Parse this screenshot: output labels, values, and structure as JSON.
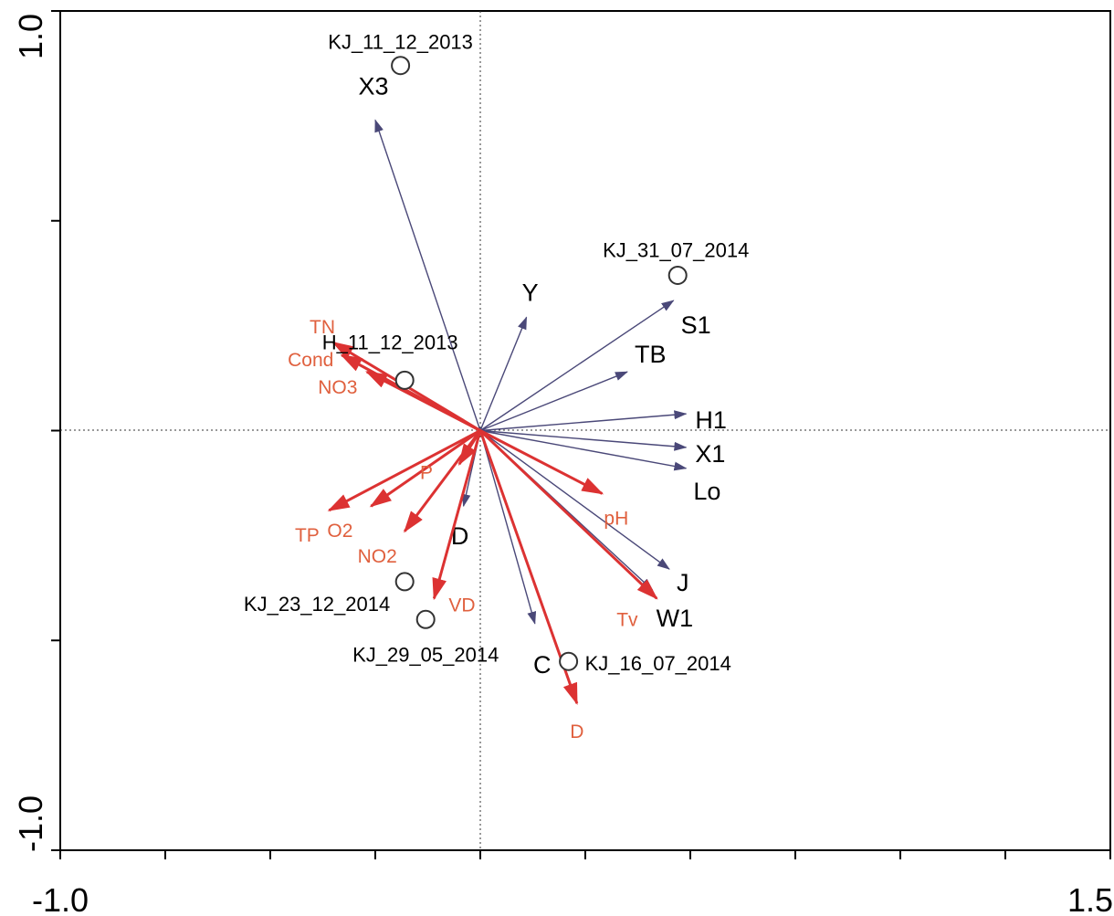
{
  "chart_data": {
    "type": "scatter",
    "subtype": "ordination-biplot",
    "title": "",
    "xlabel": "",
    "ylabel": "",
    "xlim": [
      -1.0,
      1.5
    ],
    "ylim": [
      -1.0,
      1.0
    ],
    "x_tick_labels": [
      "-1.0",
      "1.5"
    ],
    "y_tick_labels": [
      "1.0",
      "-1.0"
    ],
    "x_ticks": [
      -1.0,
      -0.75,
      -0.5,
      -0.25,
      0.0,
      0.25,
      0.5,
      0.75,
      1.0,
      1.25,
      1.5
    ],
    "y_ticks": [
      -1.0,
      -0.5,
      0.0,
      0.5,
      1.0
    ],
    "zero_lines": true,
    "grid": false,
    "colors": {
      "species": "#4a4878",
      "environment": "#dc3232",
      "environment_label": "#e0603e",
      "sample": "#333333"
    },
    "species": [
      {
        "label": "X3",
        "x": -0.25,
        "y": 0.74
      },
      {
        "label": "Y",
        "x": 0.11,
        "y": 0.27
      },
      {
        "label": "S1",
        "x": 0.46,
        "y": 0.31
      },
      {
        "label": "TB",
        "x": 0.35,
        "y": 0.14
      },
      {
        "label": "H1",
        "x": 0.49,
        "y": 0.04
      },
      {
        "label": "X1",
        "x": 0.49,
        "y": -0.04
      },
      {
        "label": "Lo",
        "x": 0.49,
        "y": -0.09
      },
      {
        "label": "J",
        "x": 0.45,
        "y": -0.33
      },
      {
        "label": "W1",
        "x": 0.41,
        "y": -0.38
      },
      {
        "label": "C",
        "x": 0.13,
        "y": -0.46
      },
      {
        "label": "D",
        "x": -0.04,
        "y": -0.18
      }
    ],
    "environment": [
      {
        "label": "TN",
        "x": -0.35,
        "y": 0.21
      },
      {
        "label": "Cond",
        "x": -0.33,
        "y": 0.18
      },
      {
        "label": "NO3",
        "x": -0.27,
        "y": 0.14
      },
      {
        "label": "TP",
        "x": -0.36,
        "y": -0.19
      },
      {
        "label": "O2",
        "x": -0.26,
        "y": -0.18
      },
      {
        "label": "NO2",
        "x": -0.18,
        "y": -0.24
      },
      {
        "label": "P",
        "x": -0.05,
        "y": -0.08
      },
      {
        "label": "VD",
        "x": -0.11,
        "y": -0.4
      },
      {
        "label": "pH",
        "x": 0.29,
        "y": -0.15
      },
      {
        "label": "Tv",
        "x": 0.42,
        "y": -0.4
      },
      {
        "label": "D",
        "x": 0.23,
        "y": -0.65
      }
    ],
    "samples": [
      {
        "label": "KJ_11_12_2013",
        "x": -0.19,
        "y": 0.87
      },
      {
        "label": "KJ_31_07_2014",
        "x": 0.47,
        "y": 0.37
      },
      {
        "label": "H_11_12_2013",
        "x": -0.18,
        "y": 0.12
      },
      {
        "label": "KJ_23_12_2014",
        "x": -0.18,
        "y": -0.36
      },
      {
        "label": "KJ_29_05_2014",
        "x": -0.13,
        "y": -0.45
      },
      {
        "label": "KJ_16_07_2014",
        "x": 0.21,
        "y": -0.55
      }
    ]
  }
}
